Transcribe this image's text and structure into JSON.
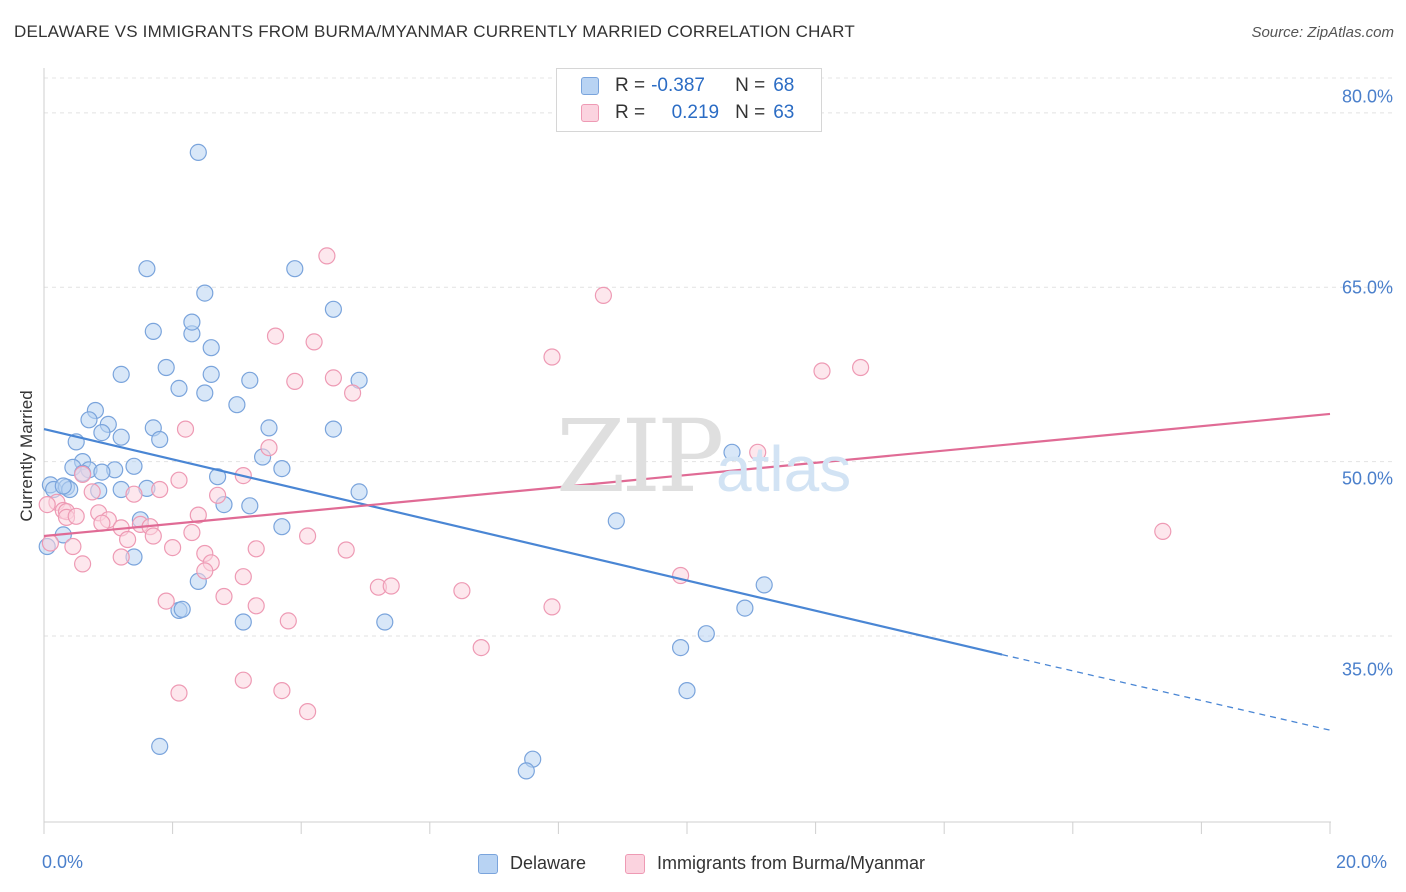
{
  "title": "DELAWARE VS IMMIGRANTS FROM BURMA/MYANMAR CURRENTLY MARRIED CORRELATION CHART",
  "source": "Source: ZipAtlas.com",
  "watermark": {
    "zip": "ZIP",
    "atlas": "atlas"
  },
  "stats": [
    {
      "r_label": "R =",
      "r_value": "-0.387",
      "n_label": "N =",
      "n_value": "68",
      "color": "#a9c7ef"
    },
    {
      "r_label": "R =",
      "r_value": "0.219",
      "n_label": "N =",
      "n_value": "63",
      "color": "#f5b6c9"
    }
  ],
  "legend": [
    {
      "label": "Delaware",
      "fill": "#b8d3f3",
      "stroke": "#7aa4dc"
    },
    {
      "label": "Immigrants from Burma/Myanmar",
      "fill": "#fbd3df",
      "stroke": "#ee9ab4"
    }
  ],
  "chart_data": {
    "type": "scatter",
    "title": "DELAWARE VS IMMIGRANTS FROM BURMA/MYANMAR CURRENTLY MARRIED CORRELATION CHART",
    "xlabel": "",
    "ylabel": "Currently Married",
    "xlim": [
      0,
      20
    ],
    "ylim": [
      19,
      83
    ],
    "x_ticks": [
      "0.0%",
      "20.0%"
    ],
    "y_ticks": [
      {
        "value": 80,
        "label": "80.0%"
      },
      {
        "value": 65,
        "label": "65.0%"
      },
      {
        "value": 50,
        "label": "50.0%"
      },
      {
        "value": 35,
        "label": "35.0%"
      }
    ],
    "grid": true,
    "legend_position": "bottom",
    "series": [
      {
        "name": "Delaware",
        "color": "#4a86d4",
        "fill": "#b8d3f3",
        "trend": {
          "x0": 0,
          "y0": 52.8,
          "x1": 14.9,
          "y1": 33.4,
          "dashed_to_x": 20,
          "dashed_to_y": 26.9
        },
        "points": [
          [
            2.4,
            76.6
          ],
          [
            1.6,
            66.6
          ],
          [
            3.9,
            66.6
          ],
          [
            2.5,
            64.5
          ],
          [
            4.5,
            63.1
          ],
          [
            1.7,
            61.2
          ],
          [
            2.3,
            61.0
          ],
          [
            2.3,
            62.0
          ],
          [
            2.6,
            59.8
          ],
          [
            1.9,
            58.1
          ],
          [
            1.2,
            57.5
          ],
          [
            2.6,
            57.5
          ],
          [
            3.2,
            57.0
          ],
          [
            4.9,
            57.0
          ],
          [
            2.1,
            56.3
          ],
          [
            2.5,
            55.9
          ],
          [
            3.0,
            54.9
          ],
          [
            0.8,
            54.4
          ],
          [
            0.7,
            53.6
          ],
          [
            1.0,
            53.2
          ],
          [
            1.7,
            52.9
          ],
          [
            3.5,
            52.9
          ],
          [
            4.5,
            52.8
          ],
          [
            0.9,
            52.5
          ],
          [
            1.2,
            52.1
          ],
          [
            1.8,
            51.9
          ],
          [
            0.5,
            51.7
          ],
          [
            3.4,
            50.4
          ],
          [
            10.7,
            50.8
          ],
          [
            0.6,
            50.0
          ],
          [
            0.45,
            49.5
          ],
          [
            0.7,
            49.3
          ],
          [
            1.1,
            49.3
          ],
          [
            1.4,
            49.6
          ],
          [
            3.7,
            49.4
          ],
          [
            0.9,
            49.1
          ],
          [
            0.6,
            49.0
          ],
          [
            2.7,
            48.7
          ],
          [
            0.1,
            48.0
          ],
          [
            0.15,
            47.6
          ],
          [
            0.35,
            47.8
          ],
          [
            0.4,
            47.6
          ],
          [
            0.85,
            47.5
          ],
          [
            1.2,
            47.6
          ],
          [
            1.6,
            47.7
          ],
          [
            4.9,
            47.4
          ],
          [
            2.8,
            46.3
          ],
          [
            3.2,
            46.2
          ],
          [
            1.5,
            45.0
          ],
          [
            8.9,
            44.9
          ],
          [
            3.7,
            44.4
          ],
          [
            0.3,
            43.7
          ],
          [
            0.05,
            42.7
          ],
          [
            1.4,
            41.8
          ],
          [
            2.4,
            39.7
          ],
          [
            11.2,
            39.4
          ],
          [
            10.9,
            37.4
          ],
          [
            2.1,
            37.2
          ],
          [
            2.15,
            37.3
          ],
          [
            3.1,
            36.2
          ],
          [
            5.3,
            36.2
          ],
          [
            10.3,
            35.2
          ],
          [
            9.9,
            34.0
          ],
          [
            10.0,
            30.3
          ],
          [
            1.8,
            25.5
          ],
          [
            7.6,
            24.4
          ],
          [
            7.5,
            23.4
          ],
          [
            0.3,
            47.9
          ]
        ]
      },
      {
        "name": "Immigrants from Burma/Myanmar",
        "color": "#e06b95",
        "fill": "#fbd3df",
        "trend": {
          "x0": 0,
          "y0": 43.6,
          "x1": 20,
          "y1": 54.1
        },
        "points": [
          [
            4.4,
            67.7
          ],
          [
            8.7,
            64.3
          ],
          [
            3.6,
            60.8
          ],
          [
            4.2,
            60.3
          ],
          [
            7.9,
            59.0
          ],
          [
            12.7,
            58.1
          ],
          [
            12.1,
            57.8
          ],
          [
            3.9,
            56.9
          ],
          [
            4.5,
            57.2
          ],
          [
            4.8,
            55.9
          ],
          [
            2.2,
            52.8
          ],
          [
            3.5,
            51.2
          ],
          [
            11.1,
            50.8
          ],
          [
            2.1,
            48.4
          ],
          [
            0.6,
            48.9
          ],
          [
            3.1,
            48.8
          ],
          [
            1.8,
            47.6
          ],
          [
            0.75,
            47.4
          ],
          [
            1.4,
            47.2
          ],
          [
            2.7,
            47.1
          ],
          [
            0.2,
            46.5
          ],
          [
            0.3,
            45.8
          ],
          [
            0.35,
            45.7
          ],
          [
            0.35,
            45.2
          ],
          [
            0.5,
            45.3
          ],
          [
            0.85,
            45.6
          ],
          [
            2.4,
            45.4
          ],
          [
            1.0,
            45.0
          ],
          [
            0.9,
            44.7
          ],
          [
            1.5,
            44.6
          ],
          [
            1.65,
            44.4
          ],
          [
            1.2,
            44.3
          ],
          [
            1.7,
            43.6
          ],
          [
            2.3,
            43.9
          ],
          [
            4.1,
            43.6
          ],
          [
            1.3,
            43.3
          ],
          [
            0.45,
            42.7
          ],
          [
            2.0,
            42.6
          ],
          [
            3.3,
            42.5
          ],
          [
            4.7,
            42.4
          ],
          [
            2.5,
            42.1
          ],
          [
            1.2,
            41.8
          ],
          [
            2.6,
            41.3
          ],
          [
            0.6,
            41.2
          ],
          [
            2.5,
            40.6
          ],
          [
            9.9,
            40.2
          ],
          [
            3.1,
            40.1
          ],
          [
            5.2,
            39.2
          ],
          [
            5.4,
            39.3
          ],
          [
            6.5,
            38.9
          ],
          [
            2.8,
            38.4
          ],
          [
            1.9,
            38.0
          ],
          [
            3.3,
            37.6
          ],
          [
            7.9,
            37.5
          ],
          [
            3.8,
            36.3
          ],
          [
            6.8,
            34.0
          ],
          [
            3.1,
            31.2
          ],
          [
            3.7,
            30.3
          ],
          [
            2.1,
            30.1
          ],
          [
            4.1,
            28.5
          ],
          [
            17.4,
            44.0
          ],
          [
            0.1,
            43.0
          ],
          [
            0.05,
            46.3
          ]
        ]
      }
    ]
  }
}
